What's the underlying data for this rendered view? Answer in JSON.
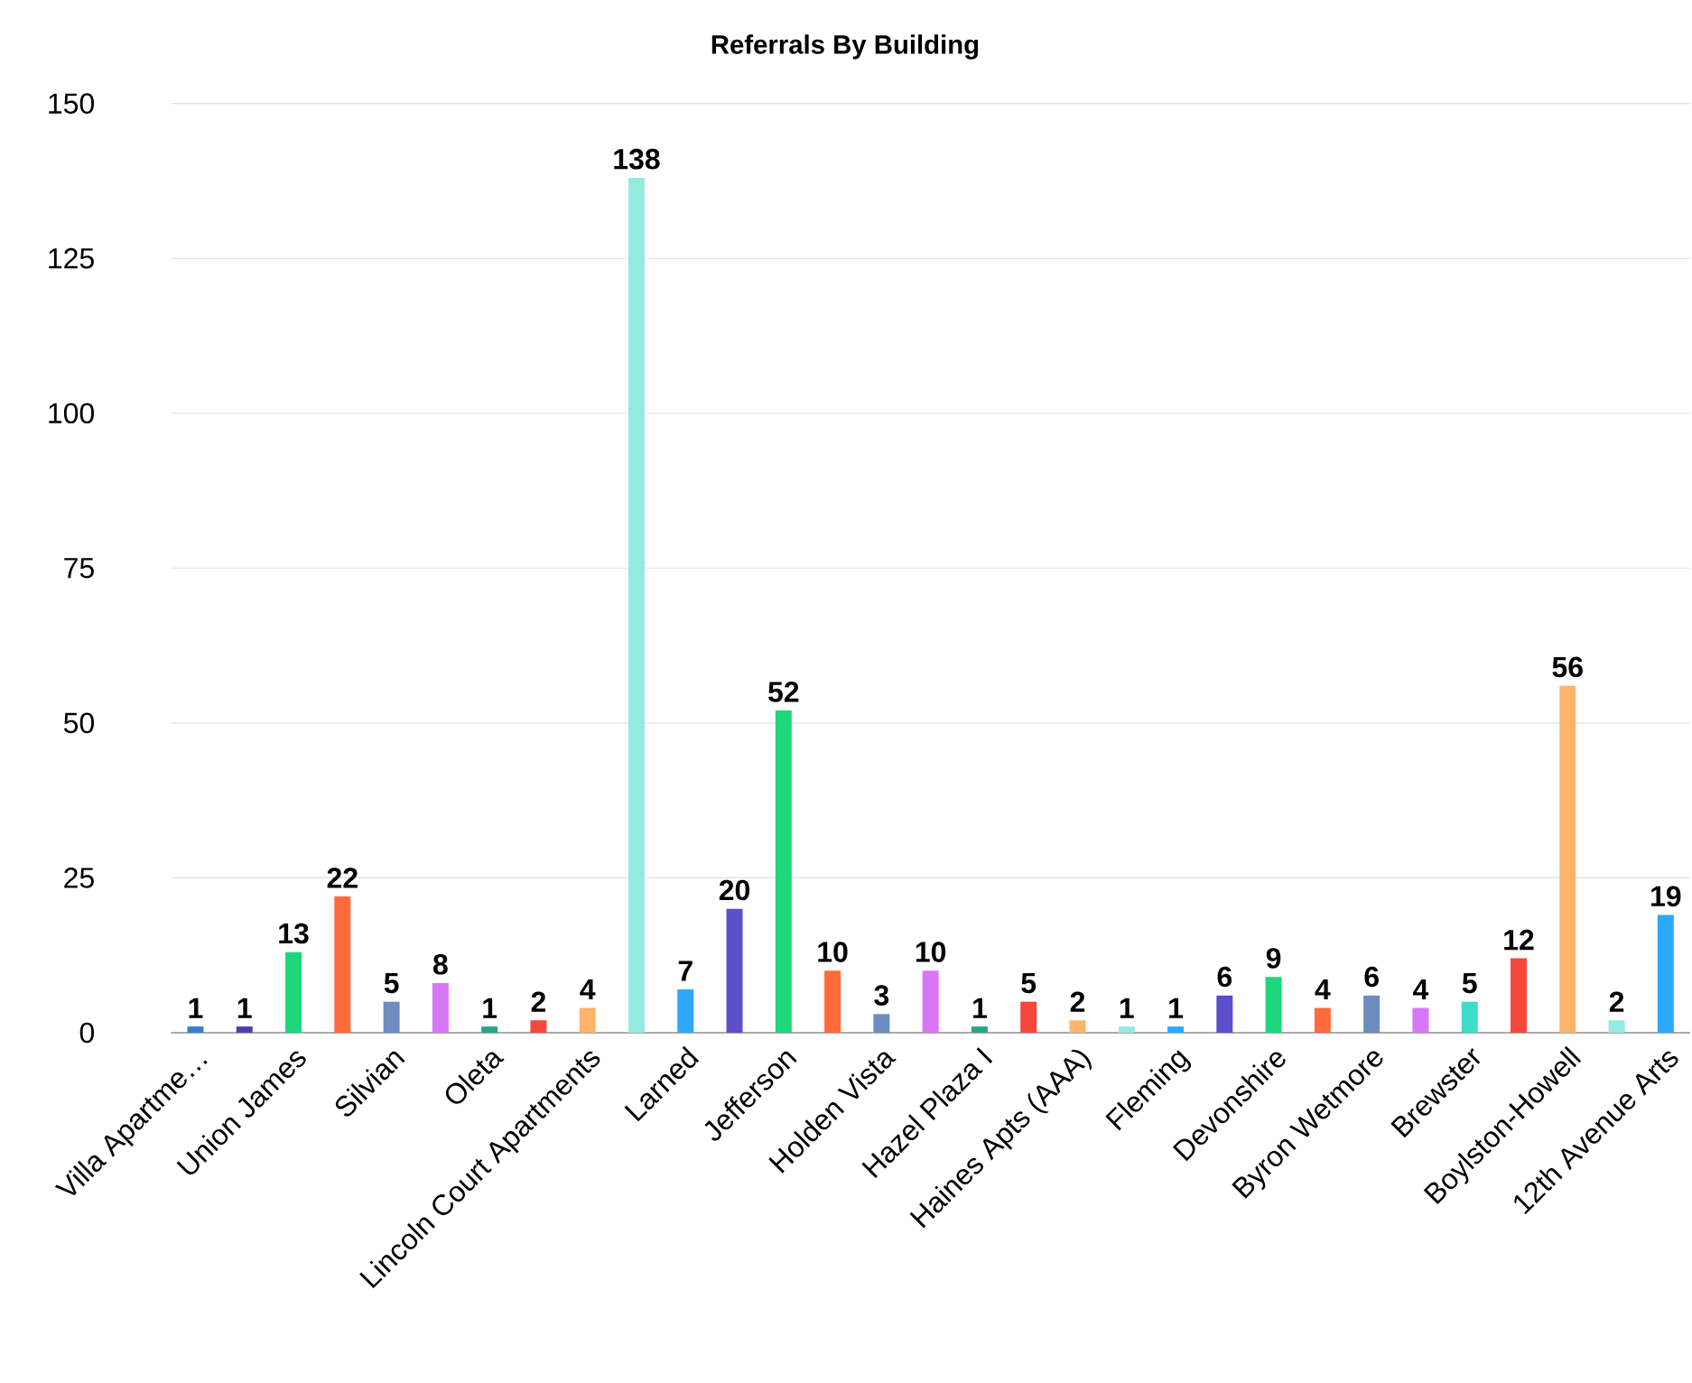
{
  "chart_data": {
    "type": "bar",
    "title": "Referrals By Building",
    "categories": [
      "Villa Apartme…",
      null,
      "Union James",
      null,
      "Silvian",
      null,
      "Oleta",
      null,
      "Lincoln Court Apartments",
      null,
      "Larned",
      null,
      "Jefferson",
      null,
      "Holden Vista",
      null,
      "Hazel Plaza I",
      null,
      "Haines Apts (AAA)",
      null,
      "Fleming",
      null,
      "Devonshire",
      null,
      "Byron Wetmore",
      null,
      "Brewster",
      null,
      "Boylston-Howell",
      null,
      "12th Avenue Arts"
    ],
    "values": [
      1,
      1,
      13,
      22,
      5,
      8,
      1,
      2,
      4,
      138,
      7,
      20,
      52,
      10,
      3,
      10,
      1,
      5,
      2,
      1,
      1,
      6,
      9,
      4,
      6,
      4,
      5,
      12,
      56,
      2,
      19
    ],
    "colors": [
      "#3a7bd0",
      "#4a3fb0",
      "#1fd77b",
      "#ff6a3a",
      "#6d8dc0",
      "#d877f5",
      "#2aa58a",
      "#f5473c",
      "#ffb46a",
      "#96e9e0",
      "#2ea8ff",
      "#5b4fcb",
      "#1fd77b",
      "#ff6a3a",
      "#6d8dc0",
      "#d877f5",
      "#2aa58a",
      "#f5473c",
      "#ffb46a",
      "#96e9e0",
      "#2ea8ff",
      "#5b4fcb",
      "#1fd77b",
      "#ff6a3a",
      "#6d8dc0",
      "#d877f5",
      "#3ddcc8",
      "#f5473c",
      "#ffb46a",
      "#96e9e0",
      "#2ea8ff"
    ],
    "ylim": [
      0,
      150
    ],
    "yticks": [
      0,
      25,
      50,
      75,
      100,
      125,
      150
    ],
    "grid": "y",
    "data_labels": true
  }
}
